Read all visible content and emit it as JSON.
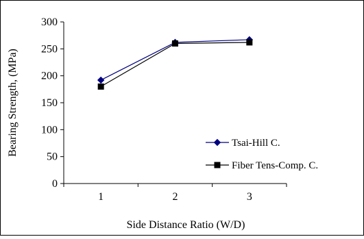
{
  "chart_data": {
    "type": "line",
    "xlabel": "Side Distance Ratio (W/D)",
    "ylabel": "Bearing Strength, (MPa)",
    "categories": [
      "1",
      "2",
      "3"
    ],
    "x": [
      1,
      2,
      3
    ],
    "ylim": [
      0,
      300
    ],
    "yticks": [
      "0",
      "50",
      "100",
      "150",
      "200",
      "250",
      "300"
    ],
    "grid": false,
    "legend_position": "right",
    "series": [
      {
        "name": "Tsai-Hill C.",
        "values": [
          192,
          262,
          267
        ],
        "color": "#000080",
        "marker": "diamond"
      },
      {
        "name": "Fiber Tens-Comp. C.",
        "values": [
          180,
          260,
          262
        ],
        "color": "#000000",
        "marker": "square"
      }
    ]
  }
}
